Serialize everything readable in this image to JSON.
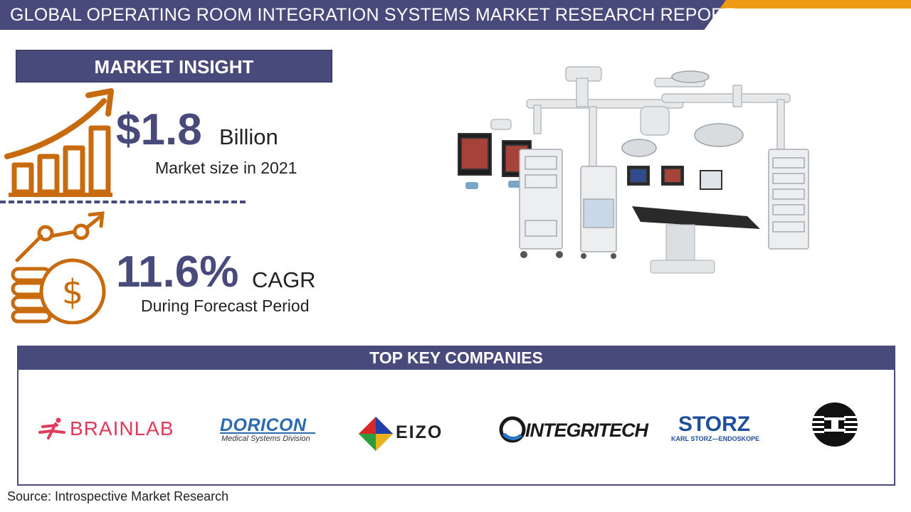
{
  "header": {
    "title": "GLOBAL OPERATING ROOM INTEGRATION SYSTEMS MARKET RESEARCH REPORT"
  },
  "insight": {
    "title": "MARKET INSIGHT",
    "market_size": {
      "value": "$1.8",
      "unit": "Billion",
      "label": "Market size in 2021"
    },
    "cagr": {
      "value": "11.6%",
      "unit": "CAGR",
      "label": "During Forecast Period"
    }
  },
  "companies": {
    "title": "TOP KEY COMPANIES",
    "logos": [
      "BRAINLAB",
      "DORICON",
      "Medical Systems Division",
      "EIZO",
      "INTEGRITECH",
      "STORZ",
      "KARL STORZ—ENDOSKOPE"
    ]
  },
  "footer": {
    "source": "Source: Introspective Market Research"
  },
  "colors": {
    "brand": "#484a7b",
    "accent": "#ee9a13",
    "icon": "#c86a0e"
  }
}
